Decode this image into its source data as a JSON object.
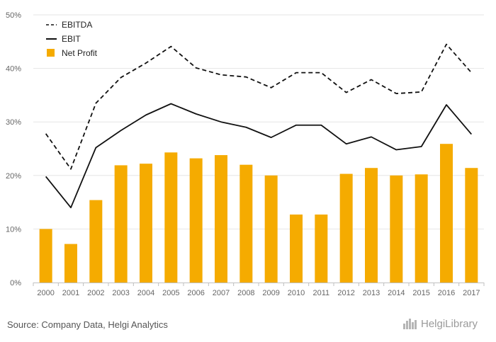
{
  "source": "Source: Company Data, Helgi Analytics",
  "brand": "HelgiLibrary",
  "colors": {
    "bar": "#f5ab00",
    "line": "#111111",
    "grid": "#e6e6e6",
    "axis": "#c0c0c0"
  },
  "chart_data": {
    "type": "bar",
    "categories": [
      "2000",
      "2001",
      "2002",
      "2003",
      "2004",
      "2005",
      "2006",
      "2007",
      "2008",
      "2009",
      "2010",
      "2011",
      "2012",
      "2013",
      "2014",
      "2015",
      "2016",
      "2017"
    ],
    "ylim": [
      0,
      50
    ],
    "yticks": [
      "0%",
      "10%",
      "20%",
      "30%",
      "40%",
      "50%"
    ],
    "grid": true,
    "legend_position": "top-left",
    "series": [
      {
        "name": "EBITDA",
        "kind": "line",
        "style": "dashed",
        "values": [
          27.8,
          21.2,
          33.5,
          38.3,
          41.0,
          44.1,
          40.1,
          38.8,
          38.4,
          36.4,
          39.2,
          39.2,
          35.5,
          37.9,
          35.3,
          35.6,
          44.5,
          39.2
        ]
      },
      {
        "name": "EBIT",
        "kind": "line",
        "style": "solid",
        "values": [
          19.8,
          14.0,
          25.2,
          28.4,
          31.3,
          33.4,
          31.5,
          30.0,
          29.0,
          27.1,
          29.4,
          29.4,
          25.9,
          27.2,
          24.8,
          25.4,
          33.2,
          27.7
        ]
      },
      {
        "name": "Net Profit",
        "kind": "bar",
        "values": [
          10.0,
          7.2,
          15.4,
          21.9,
          22.2,
          24.3,
          23.2,
          23.8,
          22.0,
          20.0,
          12.7,
          12.7,
          20.3,
          21.4,
          20.0,
          20.2,
          25.9,
          21.4
        ]
      }
    ]
  }
}
